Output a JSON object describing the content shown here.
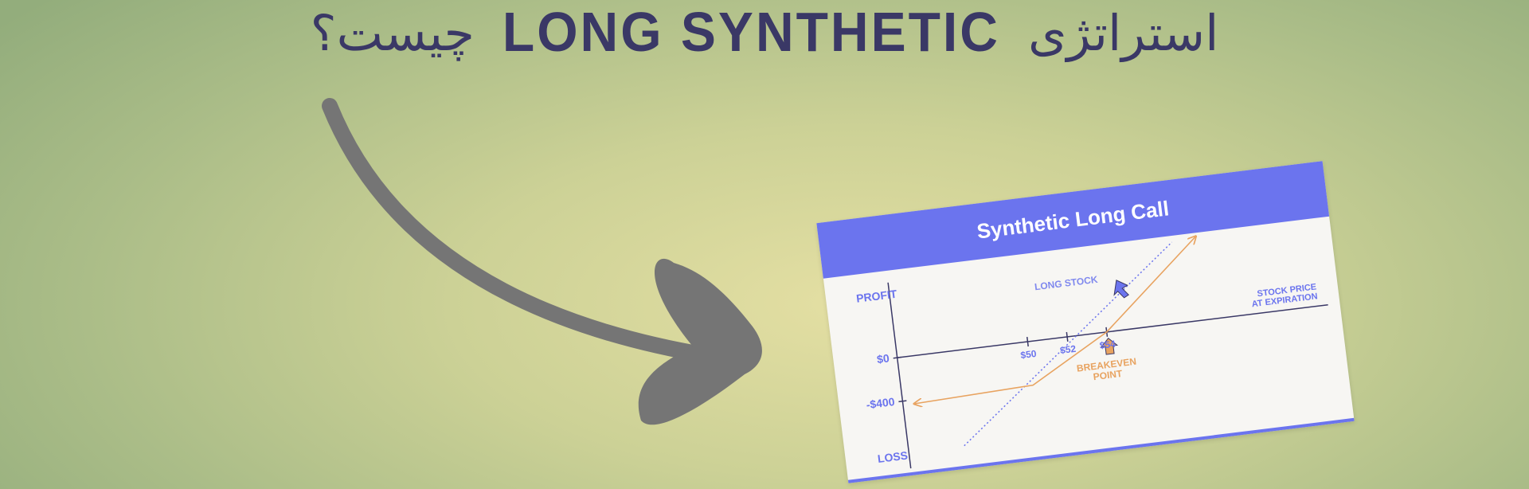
{
  "header": {
    "title_persian_right": "استراتژی",
    "title_english": "LONG SYNTHETIC",
    "title_persian_left": "چیست؟"
  },
  "colors": {
    "background_center": "#e4dfa3",
    "background_edge": "#93ad7c",
    "title_text": "#3a3866",
    "big_arrow": "#757575",
    "card_accent": "#6b74ee",
    "payoff_line": "#e8a360"
  },
  "decorations": {
    "big_arrow_icon": "curved-arrow-icon"
  },
  "chart_card": {
    "title": "Synthetic Long Call",
    "y_axis": {
      "top_label": "PROFIT",
      "bottom_label": "LOSS"
    },
    "y_ticks": [
      "$0",
      "-$400"
    ],
    "x_axis_label_line1": "STOCK PRICE",
    "x_axis_label_line2": "AT EXPIRATION",
    "x_ticks": [
      "$50",
      "$52",
      "$54"
    ],
    "long_stock_label": "LONG STOCK",
    "breakeven_label_line1": "BREAKEVEN",
    "breakeven_label_line2": "POINT"
  },
  "chart_data": {
    "type": "line",
    "title": "Synthetic Long Call",
    "xlabel": "STOCK PRICE AT EXPIRATION",
    "ylabel": "",
    "x_tick_labels": [
      "$50",
      "$52",
      "$54"
    ],
    "y_tick_labels": [
      "$0",
      "-$400"
    ],
    "series": [
      {
        "name": "",
        "style": "solid",
        "color": "#e8a360",
        "x": [
          44,
          50,
          54,
          59
        ],
        "y": [
          -500,
          -400,
          0,
          500
        ]
      },
      {
        "name": "LONG STOCK",
        "style": "dotted",
        "color": "#6b74ee",
        "x": [
          48,
          52,
          58
        ],
        "y": [
          -1000,
          -400,
          500
        ]
      }
    ],
    "annotations": [
      "BREAKEVEN POINT",
      "LONG STOCK"
    ],
    "grid": false
  }
}
